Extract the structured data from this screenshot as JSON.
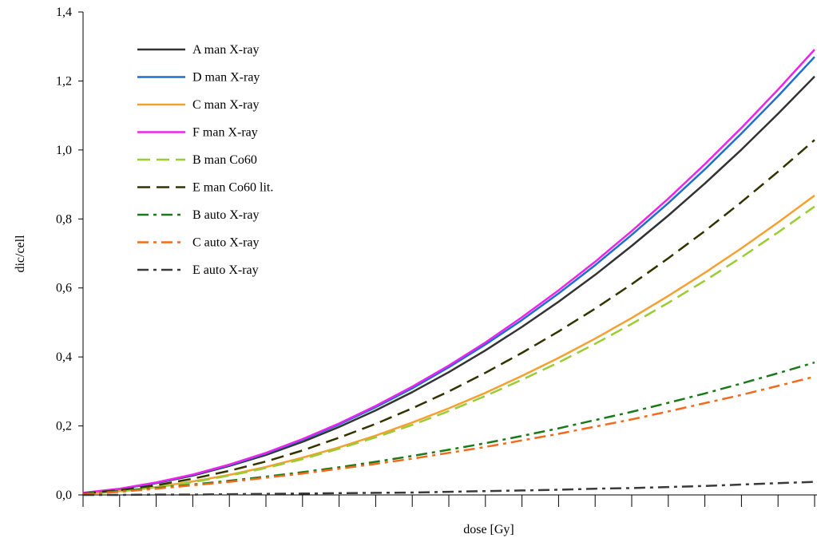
{
  "chart_data": {
    "type": "line",
    "xlabel": "dose [Gy]",
    "ylabel": "dic/cell",
    "x_tick_labels": [],
    "xlim": [
      0,
      4
    ],
    "ylim": [
      0,
      1.4
    ],
    "y_ticks": [
      0.0,
      0.2,
      0.4,
      0.6,
      0.8,
      1.0,
      1.2,
      1.4
    ],
    "y_tick_labels": [
      "0,0",
      "0,2",
      "0,4",
      "0,6",
      "0,8",
      "1,0",
      "1,2",
      "1,4"
    ],
    "x_minor_ticks": 20,
    "grid": false,
    "legend_position": "top-left",
    "x": [
      0,
      0.2,
      0.4,
      0.6,
      0.8,
      1.0,
      1.2,
      1.4,
      1.6,
      1.8,
      2.0,
      2.2,
      2.4,
      2.6,
      2.8,
      3.0,
      3.2,
      3.4,
      3.6,
      3.8,
      4.0
    ],
    "series": [
      {
        "name": "A man X-ray",
        "color": "#333333",
        "dash": "solid",
        "values": [
          0.005,
          0.017,
          0.034,
          0.056,
          0.084,
          0.116,
          0.154,
          0.197,
          0.245,
          0.298,
          0.356,
          0.419,
          0.487,
          0.56,
          0.638,
          0.722,
          0.81,
          0.903,
          1.001,
          1.105,
          1.213
        ]
      },
      {
        "name": "D man X-ray",
        "color": "#1f6fd0",
        "dash": "solid",
        "values": [
          0.005,
          0.017,
          0.035,
          0.058,
          0.086,
          0.12,
          0.16,
          0.204,
          0.254,
          0.309,
          0.37,
          0.436,
          0.507,
          0.584,
          0.666,
          0.754,
          0.846,
          0.944,
          1.048,
          1.156,
          1.27
        ]
      },
      {
        "name": "C man X-ray",
        "color": "#f5a030",
        "dash": "solid",
        "values": [
          0.002,
          0.011,
          0.023,
          0.039,
          0.058,
          0.081,
          0.108,
          0.138,
          0.172,
          0.21,
          0.251,
          0.296,
          0.345,
          0.397,
          0.453,
          0.513,
          0.577,
          0.644,
          0.715,
          0.79,
          0.868
        ]
      },
      {
        "name": "F man X-ray",
        "color": "#ee22ee",
        "dash": "solid",
        "values": [
          0.006,
          0.018,
          0.036,
          0.059,
          0.088,
          0.122,
          0.162,
          0.207,
          0.258,
          0.314,
          0.375,
          0.442,
          0.515,
          0.593,
          0.676,
          0.765,
          0.859,
          0.959,
          1.064,
          1.175,
          1.291
        ]
      },
      {
        "name": "B man Co60",
        "color": "#9acd32",
        "dash": "dash",
        "values": [
          0.002,
          0.01,
          0.022,
          0.037,
          0.056,
          0.078,
          0.104,
          0.134,
          0.167,
          0.203,
          0.243,
          0.287,
          0.334,
          0.384,
          0.438,
          0.496,
          0.557,
          0.621,
          0.689,
          0.761,
          0.836
        ]
      },
      {
        "name": "E man Co60 lit.",
        "color": "#333300",
        "dash": "dash",
        "values": [
          0.004,
          0.014,
          0.028,
          0.047,
          0.07,
          0.097,
          0.129,
          0.166,
          0.206,
          0.251,
          0.3,
          0.354,
          0.412,
          0.474,
          0.54,
          0.611,
          0.686,
          0.765,
          0.849,
          0.937,
          1.029
        ]
      },
      {
        "name": "B auto X-ray",
        "color": "#1a7a1a",
        "dash": "dashdot",
        "values": [
          0.003,
          0.011,
          0.02,
          0.03,
          0.041,
          0.053,
          0.066,
          0.08,
          0.096,
          0.113,
          0.131,
          0.15,
          0.171,
          0.193,
          0.217,
          0.241,
          0.267,
          0.294,
          0.323,
          0.353,
          0.384
        ]
      },
      {
        "name": "C auto X-ray",
        "color": "#f26b1d",
        "dash": "dashdot",
        "values": [
          0.002,
          0.009,
          0.018,
          0.028,
          0.038,
          0.05,
          0.062,
          0.076,
          0.09,
          0.105,
          0.122,
          0.139,
          0.158,
          0.177,
          0.198,
          0.219,
          0.242,
          0.266,
          0.29,
          0.316,
          0.343
        ]
      },
      {
        "name": "E auto X-ray",
        "color": "#3a3a3a",
        "dash": "dashdot",
        "values": [
          0.0,
          0.0,
          0.001,
          0.001,
          0.002,
          0.003,
          0.004,
          0.005,
          0.006,
          0.007,
          0.009,
          0.011,
          0.013,
          0.015,
          0.018,
          0.02,
          0.023,
          0.026,
          0.03,
          0.034,
          0.038
        ]
      }
    ]
  }
}
